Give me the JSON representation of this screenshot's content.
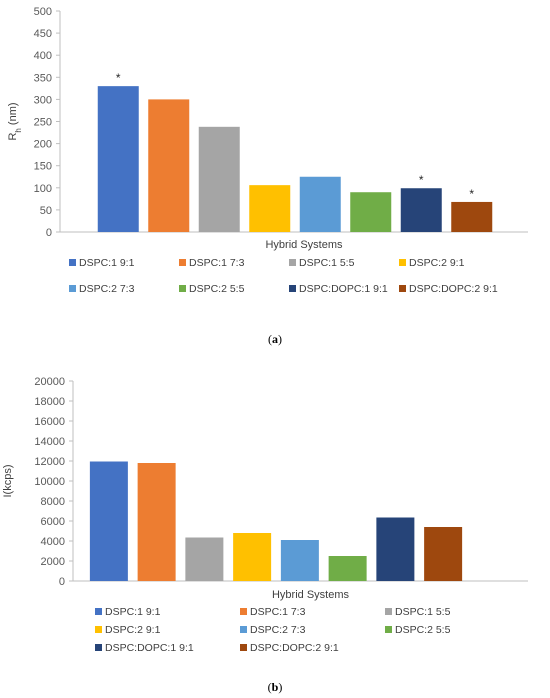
{
  "colors": [
    "#4472C4",
    "#ED7D31",
    "#A5A5A5",
    "#FFC000",
    "#5B9BD5",
    "#70AD47",
    "#264478",
    "#9E480E"
  ],
  "chart_data": [
    {
      "type": "bar",
      "panel_label": "(a)",
      "xlabel": "Hybrid Systems",
      "ylabel": "R",
      "ylabel_sub": "h",
      "ylabel_unit": " (nm)",
      "ylim": [
        0,
        500
      ],
      "yticks": [
        0,
        50,
        100,
        150,
        200,
        250,
        300,
        350,
        400,
        450,
        500
      ],
      "grid": false,
      "legend_position": "bottom",
      "series": [
        {
          "name": "DSPC:1 9:1",
          "value": 330,
          "annotation": "*"
        },
        {
          "name": "DSPC:1 7:3",
          "value": 300,
          "annotation": ""
        },
        {
          "name": "DSPC:1 5:5",
          "value": 238,
          "annotation": ""
        },
        {
          "name": "DSPC:2 9:1",
          "value": 106,
          "annotation": ""
        },
        {
          "name": "DSPC:2 7:3",
          "value": 125,
          "annotation": ""
        },
        {
          "name": "DSPC:2 5:5",
          "value": 90,
          "annotation": ""
        },
        {
          "name": "DSPC:DOPC:1 9:1",
          "value": 99,
          "annotation": "*"
        },
        {
          "name": "DSPC:DOPC:2 9:1",
          "value": 68,
          "annotation": "*"
        }
      ]
    },
    {
      "type": "bar",
      "panel_label": "(b)",
      "xlabel": "Hybrid Systems",
      "ylabel": "I(kcps)",
      "ylabel_sub": "",
      "ylabel_unit": "",
      "ylim": [
        0,
        20000
      ],
      "yticks": [
        0,
        2000,
        4000,
        6000,
        8000,
        10000,
        12000,
        14000,
        16000,
        18000,
        20000
      ],
      "grid": false,
      "legend_position": "bottom",
      "series": [
        {
          "name": "DSPC:1 9:1",
          "value": 11950,
          "annotation": ""
        },
        {
          "name": "DSPC:1 7:3",
          "value": 11800,
          "annotation": ""
        },
        {
          "name": "DSPC:1 5:5",
          "value": 4350,
          "annotation": ""
        },
        {
          "name": "DSPC:2 9:1",
          "value": 4800,
          "annotation": ""
        },
        {
          "name": "DSPC:2 7:3",
          "value": 4100,
          "annotation": ""
        },
        {
          "name": "DSPC:2 5:5",
          "value": 2500,
          "annotation": ""
        },
        {
          "name": "DSPC:DOPC:1 9:1",
          "value": 6350,
          "annotation": ""
        },
        {
          "name": "DSPC:DOPC:2 9:1",
          "value": 5400,
          "annotation": ""
        }
      ]
    }
  ]
}
